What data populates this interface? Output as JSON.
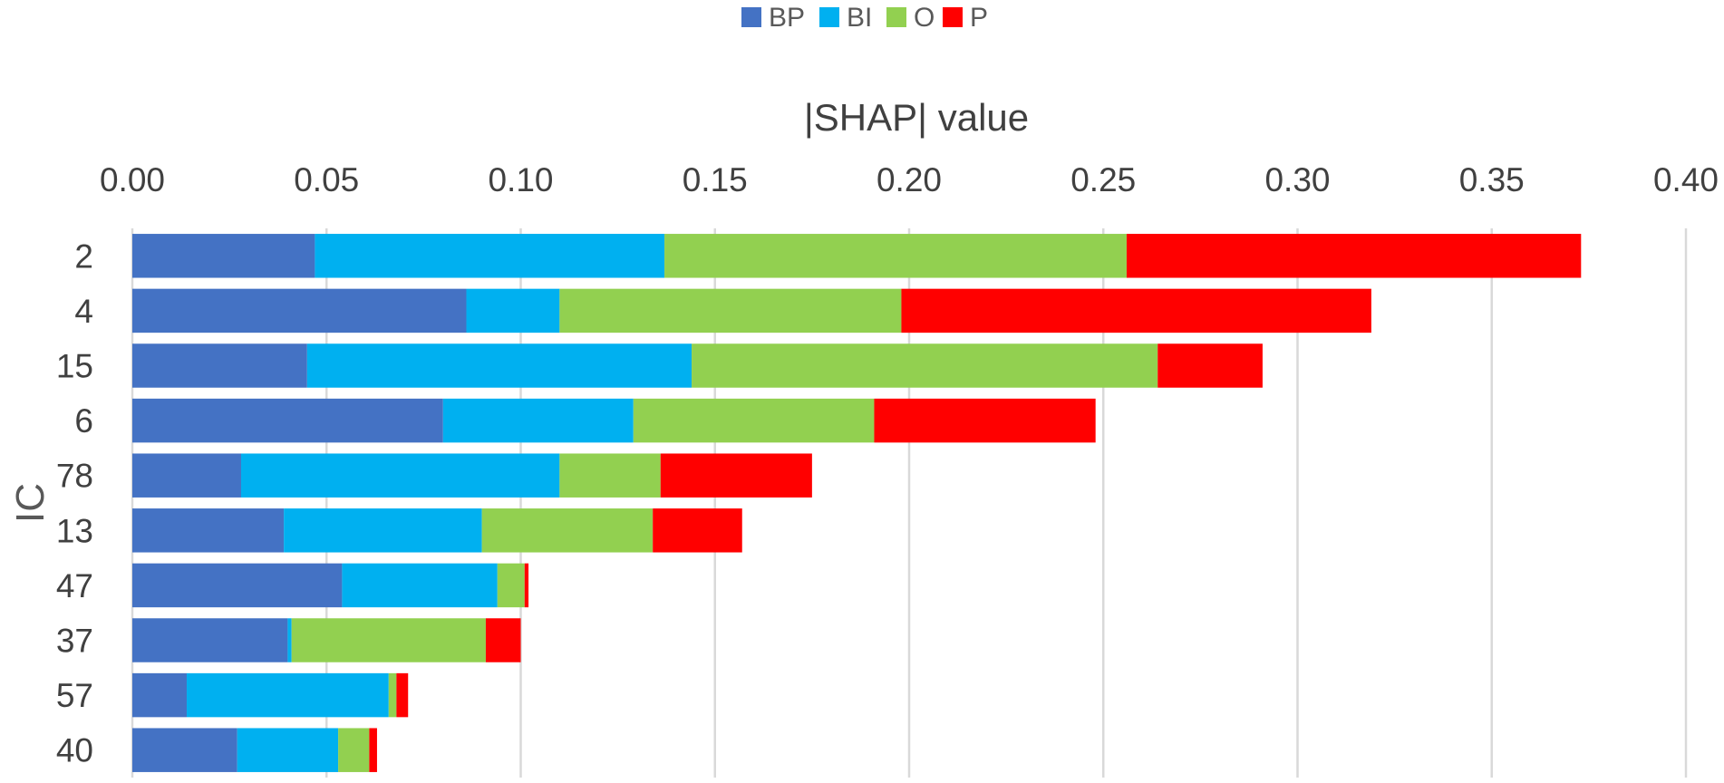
{
  "chart_data": {
    "type": "bar",
    "orientation": "horizontal",
    "stacked": true,
    "title": "",
    "xlabel": "|SHAP| value",
    "ylabel": "IC",
    "xlim": [
      0,
      0.4
    ],
    "x_ticks": [
      "0.00",
      "0.05",
      "0.10",
      "0.15",
      "0.20",
      "0.25",
      "0.30",
      "0.35",
      "0.40"
    ],
    "grid": true,
    "legend_position": "top-center",
    "categories": [
      "2",
      "4",
      "15",
      "6",
      "78",
      "13",
      "47",
      "37",
      "57",
      "40"
    ],
    "series": [
      {
        "name": "BP",
        "color": "#4472C4",
        "values": [
          0.047,
          0.086,
          0.045,
          0.08,
          0.028,
          0.039,
          0.054,
          0.04,
          0.014,
          0.027
        ]
      },
      {
        "name": "BI",
        "color": "#00B0F0",
        "values": [
          0.09,
          0.024,
          0.099,
          0.049,
          0.082,
          0.051,
          0.04,
          0.001,
          0.052,
          0.026
        ]
      },
      {
        "name": "O",
        "color": "#92D050",
        "values": [
          0.119,
          0.088,
          0.12,
          0.062,
          0.026,
          0.044,
          0.007,
          0.05,
          0.002,
          0.008
        ]
      },
      {
        "name": "P",
        "color": "#FF0000",
        "values": [
          0.117,
          0.121,
          0.027,
          0.057,
          0.039,
          0.023,
          0.001,
          0.009,
          0.003,
          0.002
        ]
      }
    ]
  }
}
